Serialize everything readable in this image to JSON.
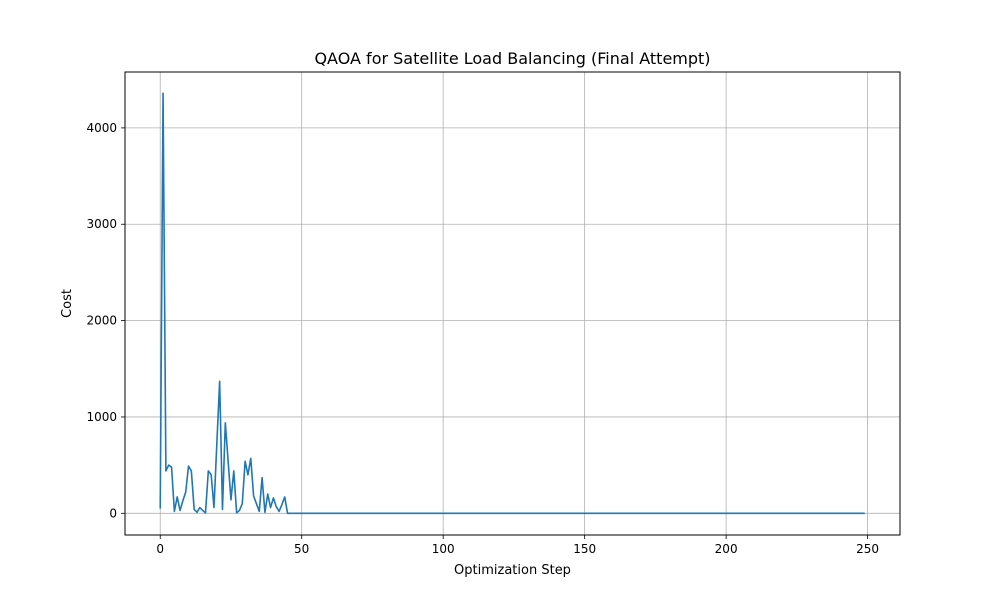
{
  "chart_data": {
    "type": "line",
    "title": "QAOA for Satellite Load Balancing (Final Attempt)",
    "xlabel": "Optimization Step",
    "ylabel": "Cost",
    "xlim": [
      -12.45,
      261.45
    ],
    "ylim": [
      -225,
      4580
    ],
    "xticks": [
      0,
      50,
      100,
      150,
      200,
      250
    ],
    "yticks": [
      0,
      1000,
      2000,
      3000,
      4000
    ],
    "grid": true,
    "line_color": "#1f77b4",
    "series": [
      {
        "name": "",
        "x": [
          0,
          1,
          2,
          3,
          4,
          5,
          6,
          7,
          8,
          9,
          10,
          11,
          12,
          13,
          14,
          15,
          16,
          17,
          18,
          19,
          20,
          21,
          22,
          23,
          24,
          25,
          26,
          27,
          28,
          29,
          30,
          31,
          32,
          33,
          34,
          35,
          36,
          37,
          38,
          39,
          40,
          41,
          42,
          43,
          44,
          45,
          249
        ],
        "y": [
          50,
          4360,
          440,
          500,
          480,
          20,
          170,
          30,
          130,
          220,
          490,
          440,
          40,
          10,
          60,
          30,
          5,
          440,
          400,
          60,
          720,
          1370,
          40,
          940,
          540,
          140,
          440,
          5,
          30,
          100,
          540,
          400,
          570,
          180,
          100,
          20,
          370,
          10,
          200,
          60,
          160,
          70,
          20,
          90,
          170,
          0,
          0
        ]
      }
    ]
  }
}
